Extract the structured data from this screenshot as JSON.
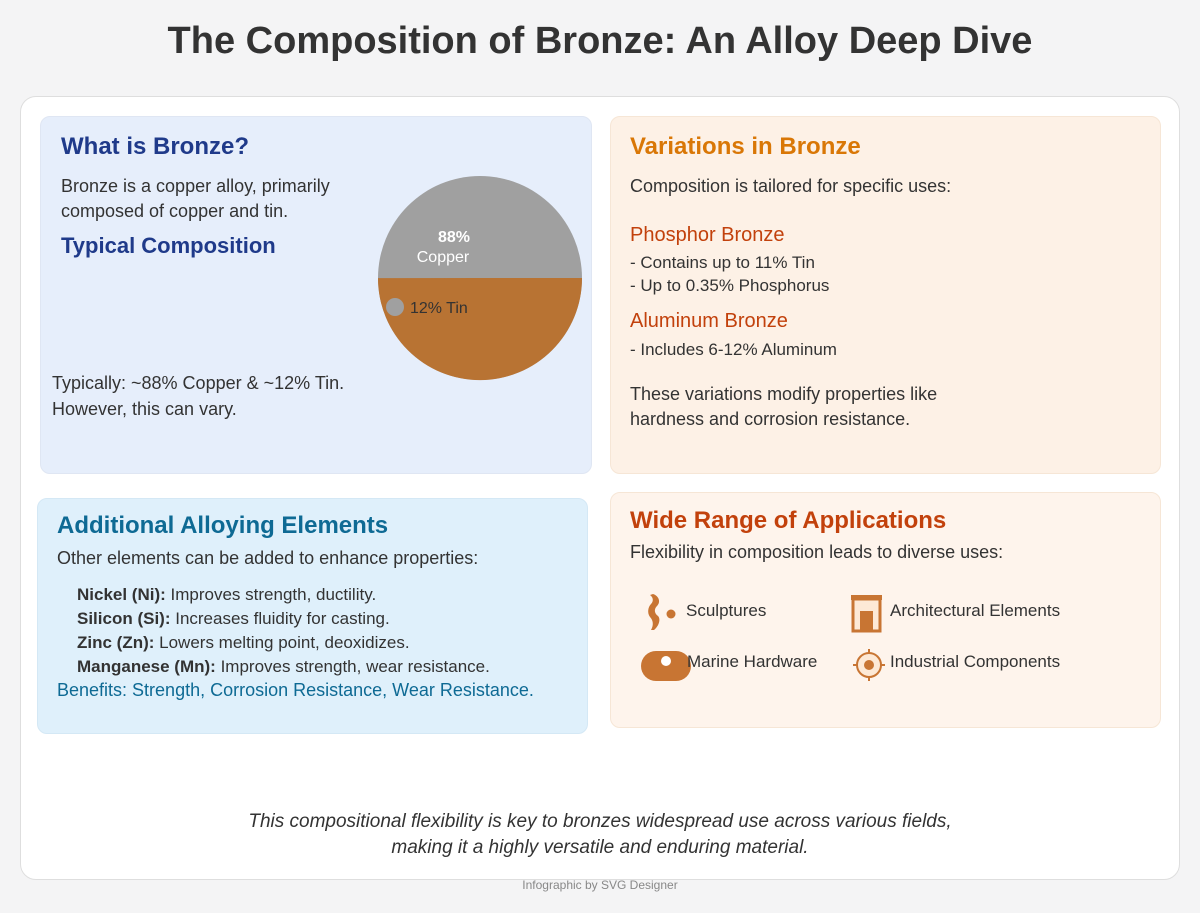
{
  "title": "The Composition of Bronze: An Alloy Deep Dive",
  "what_is": {
    "heading": "What is Bronze?",
    "desc_line1": "Bronze is a copper alloy, primarily",
    "desc_line2": "composed of copper and tin.",
    "sub_heading": "Typical Composition",
    "pie_copper_pct": "88%",
    "pie_copper_label": "Copper",
    "pie_tin_label": "12% Tin",
    "note_line1": "Typically: ~88% Copper & ~12% Tin.",
    "note_line2": "However, this can vary."
  },
  "chart_data": {
    "type": "pie",
    "categories": [
      "Copper",
      "Tin"
    ],
    "values": [
      88,
      12
    ],
    "colors": [
      "#b87333",
      "#a0a0a0"
    ]
  },
  "variations": {
    "heading": "Variations in Bronze",
    "intro": "Composition is tailored for specific uses:",
    "phosphor_title": "Phosphor Bronze",
    "phosphor_line1": "- Contains up to 11% Tin",
    "phosphor_line2": "- Up to 0.35% Phosphorus",
    "aluminum_title": "Aluminum Bronze",
    "aluminum_line1": "- Includes 6-12% Aluminum",
    "summary_line1": "These variations modify properties like",
    "summary_line2": "hardness and corrosion resistance."
  },
  "alloying": {
    "heading": "Additional Alloying Elements",
    "intro": "Other elements can be added to enhance properties:",
    "items": [
      {
        "name": "Nickel (Ni):",
        "desc": " Improves strength, ductility."
      },
      {
        "name": "Silicon (Si):",
        "desc": " Increases fluidity for casting."
      },
      {
        "name": "Zinc (Zn):",
        "desc": " Lowers melting point, deoxidizes."
      },
      {
        "name": "Manganese (Mn):",
        "desc": " Improves strength, wear resistance."
      }
    ],
    "benefits": "Benefits: Strength, Corrosion Resistance, Wear Resistance."
  },
  "applications": {
    "heading": "Wide Range of Applications",
    "intro": "Flexibility in composition leads to diverse uses:",
    "items": [
      {
        "label": "Sculptures",
        "icon": "sculpture-icon"
      },
      {
        "label": "Architectural Elements",
        "icon": "building-icon"
      },
      {
        "label": "Marine Hardware",
        "icon": "marine-hardware-icon"
      },
      {
        "label": "Industrial Components",
        "icon": "gear-icon"
      }
    ]
  },
  "footer": {
    "line1": "This compositional flexibility is key to bronzes widespread use across various fields,",
    "line2": "making it a highly versatile and enduring material."
  },
  "credit": "Infographic by SVG Designer",
  "colors": {
    "copper": "#b87333",
    "tin": "#a0a0a0",
    "blue_heading": "#1f3a8a",
    "orange_heading": "#d97706",
    "rust_heading": "#c2410c",
    "teal_heading": "#0e6a94"
  }
}
